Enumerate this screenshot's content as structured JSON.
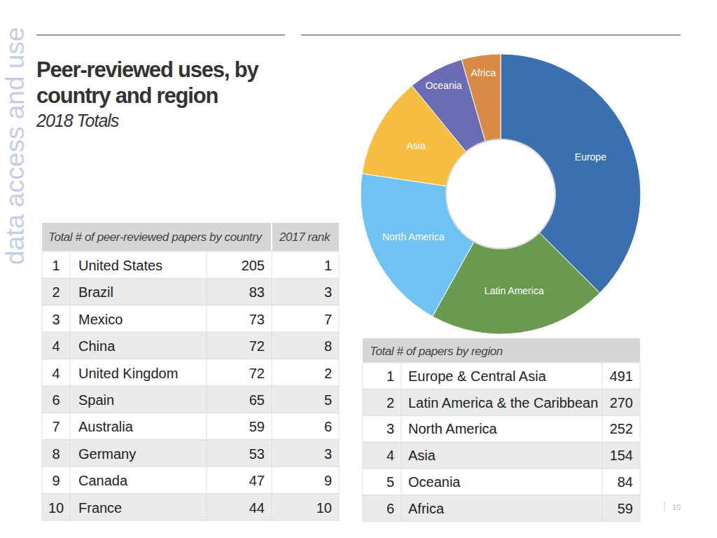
{
  "page": {
    "side_label": "data access and use",
    "title_lines": [
      "Peer-reviewed uses, by",
      "country and region"
    ],
    "subtitle": "2018 Totals",
    "page_number": 10
  },
  "chart_data": {
    "type": "pie",
    "categories": [
      "Europe",
      "Latin America",
      "North America",
      "Asia",
      "Oceania",
      "Africa"
    ],
    "values": [
      491,
      270,
      252,
      154,
      84,
      59
    ],
    "colors": [
      "#3a70b0",
      "#6a9a4e",
      "#6ec3f4",
      "#f5be41",
      "#6b6cb4",
      "#d98a44"
    ]
  },
  "country_table": {
    "header": [
      "Total # of peer-reviewed papers by country",
      "2017 rank"
    ],
    "rows": [
      [
        1,
        "United States",
        205,
        1
      ],
      [
        2,
        "Brazil",
        83,
        3
      ],
      [
        3,
        "Mexico",
        73,
        7
      ],
      [
        4,
        "China",
        72,
        8
      ],
      [
        4,
        "United Kingdom",
        72,
        2
      ],
      [
        6,
        "Spain",
        65,
        5
      ],
      [
        7,
        "Australia",
        59,
        6
      ],
      [
        8,
        "Germany",
        53,
        3
      ],
      [
        9,
        "Canada",
        47,
        9
      ],
      [
        10,
        "France",
        44,
        10
      ]
    ]
  },
  "region_table": {
    "header": "Total # of papers by region",
    "rows": [
      [
        1,
        "Europe & Central Asia",
        491
      ],
      [
        2,
        "Latin America & the Caribbean",
        270
      ],
      [
        3,
        "North America",
        252
      ],
      [
        4,
        "Asia",
        154
      ],
      [
        5,
        "Oceania",
        84
      ],
      [
        6,
        "Africa",
        59
      ]
    ]
  }
}
